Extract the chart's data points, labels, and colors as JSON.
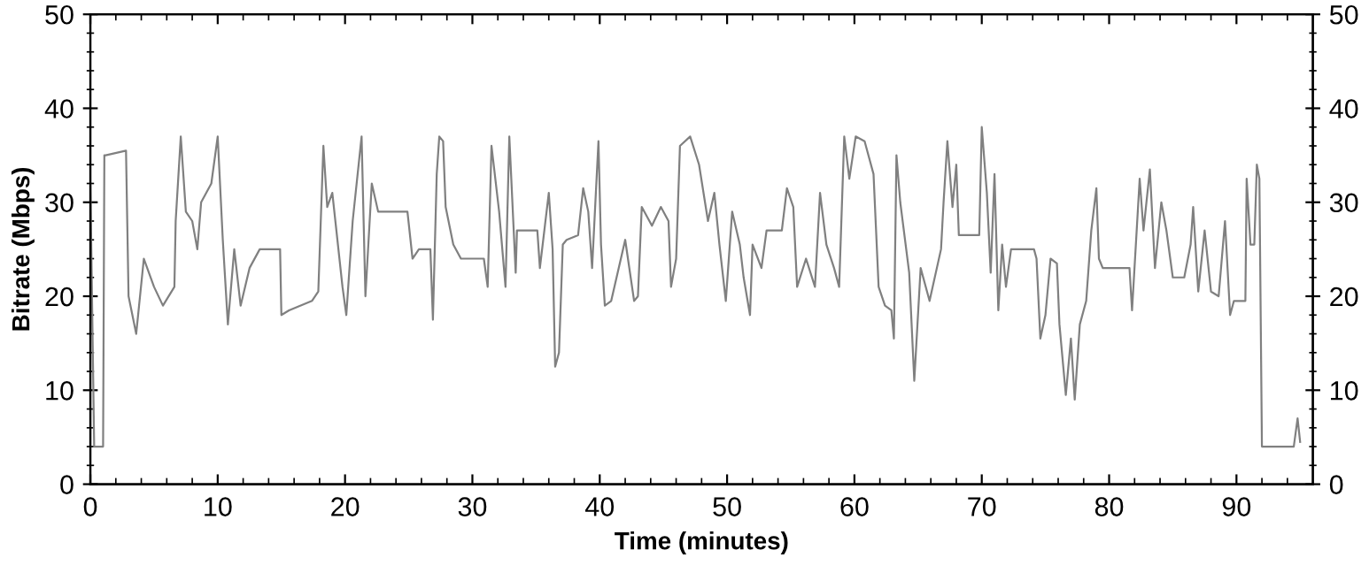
{
  "chart_data": {
    "type": "line",
    "xlabel": "Time (minutes)",
    "ylabel": "Bitrate (Mbps)",
    "xlim": [
      0,
      96
    ],
    "ylim": [
      0,
      50
    ],
    "y2lim": [
      0,
      50
    ],
    "xticks": [
      0,
      {
        "value": 2,
        "label": null
      },
      {
        "value": 4,
        "label": null
      },
      {
        "value": 6,
        "label": null
      },
      {
        "value": 8,
        "label": null
      },
      10,
      {
        "value": 12,
        "label": null
      },
      {
        "value": 14,
        "label": null
      },
      {
        "value": 16,
        "label": null
      },
      {
        "value": 18,
        "label": null
      },
      20,
      {
        "value": 22,
        "label": null
      },
      {
        "value": 24,
        "label": null
      },
      {
        "value": 26,
        "label": null
      },
      {
        "value": 28,
        "label": null
      },
      30,
      {
        "value": 32,
        "label": null
      },
      {
        "value": 34,
        "label": null
      },
      {
        "value": 36,
        "label": null
      },
      {
        "value": 38,
        "label": null
      },
      40,
      {
        "value": 42,
        "label": null
      },
      {
        "value": 44,
        "label": null
      },
      {
        "value": 46,
        "label": null
      },
      {
        "value": 48,
        "label": null
      },
      50,
      {
        "value": 52,
        "label": null
      },
      {
        "value": 54,
        "label": null
      },
      {
        "value": 56,
        "label": null
      },
      {
        "value": 58,
        "label": null
      },
      60,
      {
        "value": 62,
        "label": null
      },
      {
        "value": 64,
        "label": null
      },
      {
        "value": 66,
        "label": null
      },
      {
        "value": 68,
        "label": null
      },
      70,
      {
        "value": 72,
        "label": null
      },
      {
        "value": 74,
        "label": null
      },
      {
        "value": 76,
        "label": null
      },
      {
        "value": 78,
        "label": null
      },
      80,
      {
        "value": 82,
        "label": null
      },
      {
        "value": 84,
        "label": null
      },
      {
        "value": 86,
        "label": null
      },
      {
        "value": 88,
        "label": null
      },
      90,
      {
        "value": 92,
        "label": null
      },
      {
        "value": 94,
        "label": null
      }
    ],
    "yticks": [
      0,
      {
        "value": 2,
        "label": null
      },
      {
        "value": 4,
        "label": null
      },
      {
        "value": 6,
        "label": null
      },
      {
        "value": 8,
        "label": null
      },
      10,
      {
        "value": 12,
        "label": null
      },
      {
        "value": 14,
        "label": null
      },
      {
        "value": 16,
        "label": null
      },
      {
        "value": 18,
        "label": null
      },
      20,
      {
        "value": 22,
        "label": null
      },
      {
        "value": 24,
        "label": null
      },
      {
        "value": 26,
        "label": null
      },
      {
        "value": 28,
        "label": null
      },
      30,
      {
        "value": 32,
        "label": null
      },
      {
        "value": 34,
        "label": null
      },
      {
        "value": 36,
        "label": null
      },
      {
        "value": 38,
        "label": null
      },
      40,
      {
        "value": 42,
        "label": null
      },
      {
        "value": 44,
        "label": null
      },
      {
        "value": 46,
        "label": null
      },
      {
        "value": 48,
        "label": null
      },
      50
    ],
    "y2ticks": [
      0,
      {
        "value": 2,
        "label": null
      },
      {
        "value": 4,
        "label": null
      },
      {
        "value": 6,
        "label": null
      },
      {
        "value": 8,
        "label": null
      },
      10,
      {
        "value": 12,
        "label": null
      },
      {
        "value": 14,
        "label": null
      },
      {
        "value": 16,
        "label": null
      },
      {
        "value": 18,
        "label": null
      },
      20,
      {
        "value": 22,
        "label": null
      },
      {
        "value": 24,
        "label": null
      },
      {
        "value": 26,
        "label": null
      },
      {
        "value": 28,
        "label": null
      },
      30,
      {
        "value": 32,
        "label": null
      },
      {
        "value": 34,
        "label": null
      },
      {
        "value": 36,
        "label": null
      },
      {
        "value": 38,
        "label": null
      },
      40,
      {
        "value": 42,
        "label": null
      },
      {
        "value": 44,
        "label": null
      },
      {
        "value": 46,
        "label": null
      },
      {
        "value": 48,
        "label": null
      },
      50
    ],
    "grid": false,
    "marker": "none",
    "line_style": "solid",
    "series": [
      {
        "color": "#808080",
        "x": [
          0,
          0.3,
          1.0,
          1.1,
          1.2,
          2.8,
          3.0,
          3.6,
          4.2,
          5.0,
          5.7,
          6.6,
          6.7,
          7.1,
          7.5,
          8.0,
          8.4,
          8.7,
          9.5,
          10.0,
          10.4,
          10.8,
          11.3,
          11.8,
          12.5,
          13.3,
          14.9,
          15.0,
          15.6,
          17.4,
          17.9,
          18.3,
          18.6,
          19.0,
          19.8,
          20.1,
          20.6,
          21.3,
          21.6,
          22.1,
          22.6,
          24.9,
          25.3,
          25.8,
          26.7,
          26.9,
          27.2,
          27.4,
          27.7,
          27.9,
          28.5,
          29.1,
          30.9,
          31.2,
          31.5,
          32.1,
          32.6,
          32.9,
          33.4,
          33.5,
          35.1,
          35.3,
          36.0,
          36.3,
          36.5,
          36.8,
          37.1,
          37.4,
          38.3,
          38.7,
          39.1,
          39.4,
          39.9,
          40.1,
          40.4,
          40.9,
          42.0,
          42.7,
          43.0,
          43.3,
          44.1,
          44.8,
          45.4,
          45.6,
          46.0,
          46.3,
          47.1,
          47.8,
          48.5,
          49.0,
          49.4,
          49.9,
          50.4,
          51.0,
          51.3,
          51.8,
          52.0,
          52.7,
          53.1,
          54.3,
          54.7,
          55.2,
          55.5,
          56.2,
          56.9,
          57.3,
          57.8,
          58.4,
          58.8,
          59.2,
          59.6,
          60.1,
          60.8,
          61.5,
          61.9,
          62.4,
          62.9,
          63.1,
          63.3,
          63.6,
          64.3,
          64.7,
          65.2,
          65.9,
          66.8,
          67.0,
          67.3,
          67.7,
          68.0,
          68.2,
          68.9,
          69.8,
          70.0,
          70.4,
          70.7,
          71.0,
          71.3,
          71.6,
          71.9,
          72.3,
          74.1,
          74.3,
          74.6,
          75.0,
          75.4,
          75.9,
          76.1,
          76.6,
          77.0,
          77.3,
          77.7,
          78.2,
          78.6,
          79.0,
          79.2,
          79.5,
          81.6,
          81.8,
          82.4,
          82.7,
          83.2,
          83.6,
          84.1,
          84.5,
          85.0,
          85.9,
          86.4,
          86.6,
          87.0,
          87.5,
          88.0,
          88.6,
          89.1,
          89.5,
          89.8,
          90.7,
          90.8,
          91.1,
          91.4,
          91.6,
          91.8,
          92.0,
          92.3,
          94.5,
          94.8,
          95.0
        ],
        "values": [
          32,
          4,
          4,
          35,
          35,
          35.5,
          20,
          16,
          24,
          21,
          19,
          21,
          28,
          37,
          29,
          28,
          25,
          30,
          32,
          37,
          26,
          17,
          25,
          19,
          23,
          25,
          25,
          18,
          18.5,
          19.5,
          20.5,
          36,
          29.5,
          31,
          21,
          18,
          28,
          37,
          20,
          32,
          29,
          29,
          24,
          25,
          25,
          17.5,
          33,
          37,
          36.5,
          29.5,
          25.5,
          24,
          24,
          21,
          36,
          29,
          21,
          37,
          22.5,
          27,
          27,
          23,
          31,
          25,
          12.5,
          14,
          25.5,
          26,
          26.5,
          31.5,
          29,
          23,
          36.5,
          25.5,
          19,
          19.5,
          26,
          19.5,
          20,
          29.5,
          27.5,
          29.5,
          28,
          21,
          24,
          36,
          37,
          34,
          28,
          31,
          25.5,
          19.5,
          29,
          25.5,
          22,
          18,
          25.5,
          23,
          27,
          27,
          31.5,
          29.5,
          21,
          24,
          21,
          31,
          25.5,
          23,
          21,
          37,
          32.5,
          37,
          36.5,
          33,
          21,
          19,
          18.5,
          15.5,
          35,
          30,
          22.5,
          11,
          23,
          19.5,
          25,
          30,
          36.5,
          29.5,
          34,
          26.5,
          26.5,
          26.5,
          38,
          31,
          22.5,
          33,
          18.5,
          25.5,
          21,
          25,
          25,
          24,
          15.5,
          18,
          24,
          23.5,
          17,
          9.5,
          15.5,
          9,
          17,
          19.5,
          27,
          31.5,
          24,
          23,
          23,
          18.5,
          32.5,
          27,
          33.5,
          23,
          30,
          27,
          22,
          22,
          25.5,
          29.5,
          20.5,
          27,
          20.5,
          20,
          28,
          18,
          19.5,
          19.5,
          32.5,
          25.5,
          25.5,
          34,
          32.5,
          4,
          4,
          4,
          7,
          4.5
        ]
      }
    ]
  }
}
